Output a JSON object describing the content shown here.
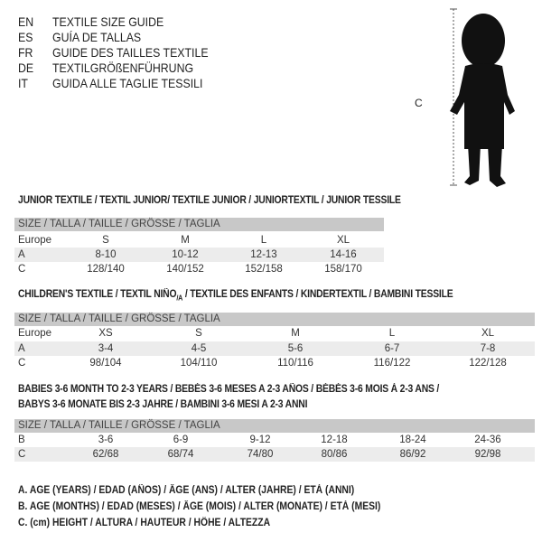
{
  "titles": [
    {
      "code": "EN",
      "text": "TEXTILE SIZE GUIDE"
    },
    {
      "code": "ES",
      "text": "GUÍA DE TALLAS"
    },
    {
      "code": "FR",
      "text": "GUIDE DES TAILLES TEXTILE"
    },
    {
      "code": "DE",
      "text": "TEXTILGRÖßENFÜHRUNG"
    },
    {
      "code": "IT",
      "text": "GUIDA ALLE TAGLIE TESSILI"
    }
  ],
  "figure": {
    "measure_label": "C",
    "icon": "child-silhouette-icon"
  },
  "junior": {
    "title": "JUNIOR TEXTILE / TEXTIL JUNIOR/ TEXTILE JUNIOR / JUNIORTEXTIL / JUNIOR TESSILE",
    "header": "SIZE / TALLA / TAILLE / GRÖSSE / TAGLIA",
    "rows": [
      {
        "label": "Europe",
        "values": [
          "S",
          "M",
          "L",
          "XL"
        ]
      },
      {
        "label": "A",
        "values": [
          "8-10",
          "10-12",
          "12-13",
          "14-16"
        ]
      },
      {
        "label": "C",
        "values": [
          "128/140",
          "140/152",
          "152/158",
          "158/170"
        ]
      }
    ]
  },
  "children": {
    "title_a": "CHILDREN'S TEXTILE / TEXTIL NIÑO",
    "title_sub": "/A",
    "title_b": " / TEXTILE DES ENFANTS / KINDERTEXTIL / BAMBINI TESSILE",
    "header": "SIZE / TALLA / TAILLE / GRÖSSE / TAGLIA",
    "rows": [
      {
        "label": "Europe",
        "values": [
          "XS",
          "S",
          "M",
          "L",
          "XL"
        ]
      },
      {
        "label": "A",
        "values": [
          "3-4",
          "4-5",
          "5-6",
          "6-7",
          "7-8"
        ]
      },
      {
        "label": "C",
        "values": [
          "98/104",
          "104/110",
          "110/116",
          "116/122",
          "122/128"
        ]
      }
    ]
  },
  "babies": {
    "title_line1": "BABIES 3-6 MONTH TO 2-3 YEARS / BEBÉS 3-6 MESES A 2-3 AÑOS / BÉBÉS 3-6 MOIS À 2-3 ANS /",
    "title_line2": "BABYS 3-6 MONATE BIS 2-3 JAHRE / BAMBINI 3-6 MESI A 2-3 ANNI",
    "header": "SIZE / TALLA / TAILLE / GRÖSSE / TAGLIA",
    "rows": [
      {
        "label": "B",
        "values": [
          "3-6",
          "6-9",
          "9-12",
          "12-18",
          "18-24",
          "24-36"
        ]
      },
      {
        "label": "C",
        "values": [
          "62/68",
          "68/74",
          "74/80",
          "80/86",
          "86/92",
          "92/98"
        ]
      }
    ]
  },
  "legend": [
    "A. AGE (YEARS) / EDAD (AÑOS) / ÂGE (ANS) / ALTER (JAHRE) / ETÀ (ANNI)",
    "B. AGE (MONTHS) / EDAD (MESES) / ÂGE (MOIS) / ALTER (MONATE) / ETÀ (MESI)",
    "C. (cm) HEIGHT / ALTURA / HAUTEUR / HÖHE / ALTEZZA"
  ]
}
